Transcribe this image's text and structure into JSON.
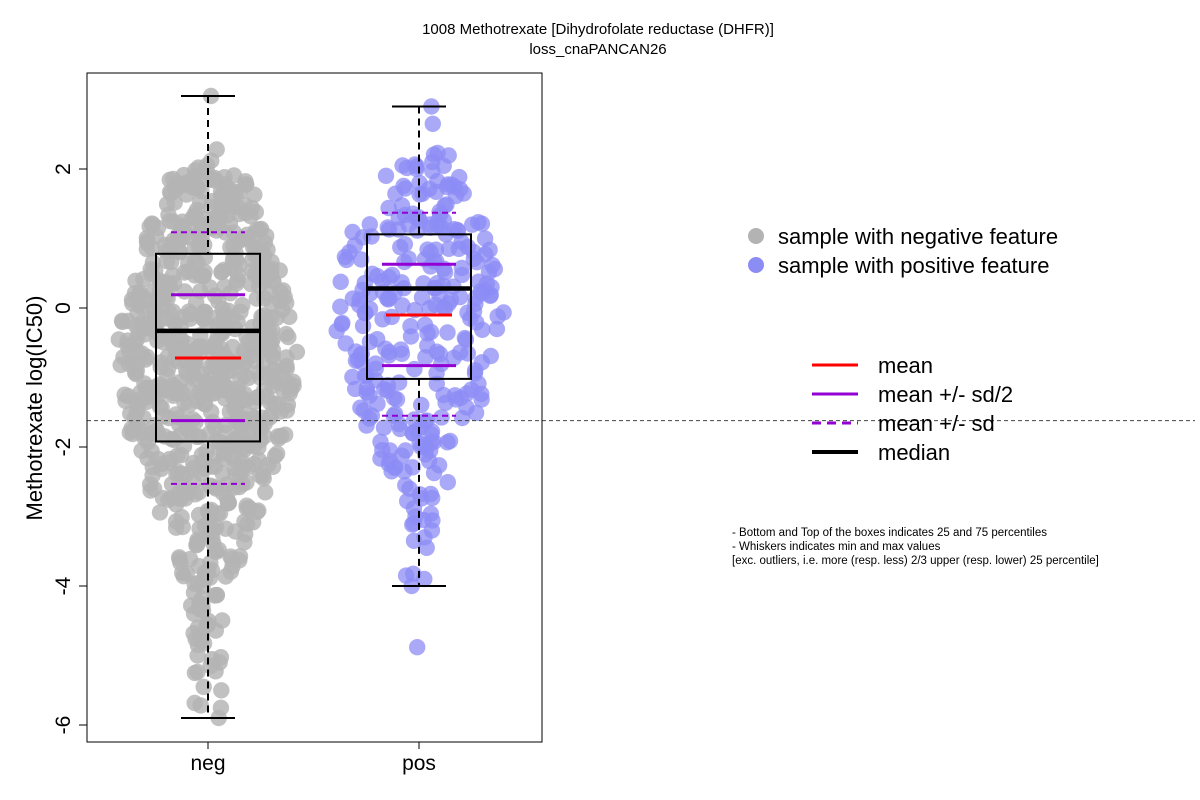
{
  "chart_data": {
    "type": "scatter",
    "title": "1008 Methotrexate [Dihydrofolate reductase (DHFR)]",
    "subtitle": "loss_cnaPANCAN26",
    "ylabel": "Methotrexate log(IC50)",
    "xlabel": "",
    "categories": [
      "neg",
      "pos"
    ],
    "yticks": [
      "2",
      "0",
      "-2",
      "-4",
      "-6"
    ],
    "ylim": [
      -6.25,
      3.4
    ],
    "grid": false,
    "reference_line": -1.62,
    "legend_position": "right",
    "legend_points": [
      {
        "label": "sample with negative feature",
        "color": "#b3b3b3"
      },
      {
        "label": "sample with positive feature",
        "color": "#8c8cf5"
      }
    ],
    "legend_lines": [
      {
        "label": "mean",
        "color": "#ff0000",
        "style": "solid"
      },
      {
        "label": "mean +/- sd/2",
        "color": "#9400d3",
        "style": "solid"
      },
      {
        "label": "mean +/- sd",
        "color": "#9400d3",
        "style": "dashed"
      },
      {
        "label": "median",
        "color": "#000000",
        "style": "solid"
      }
    ],
    "notes": [
      "- Bottom and Top of the boxes indicates 25 and 75 percentiles",
      "- Whiskers indicates min and max values",
      "[exc. outliers, i.e. more (resp. less) 2/3 upper (resp. lower) 25 percentile]"
    ],
    "series": [
      {
        "name": "neg",
        "color": "#b3b3b3",
        "n": 750,
        "min": -5.9,
        "q1": -1.92,
        "median": -0.33,
        "q3": 0.78,
        "max": 3.05,
        "mean": -0.72,
        "mean_minus_half_sd": -1.62,
        "mean_plus_half_sd": 0.19,
        "mean_minus_sd": -2.53,
        "mean_plus_sd": 1.09,
        "points": [
          3.05,
          2.28,
          2.12,
          2.05,
          2.02,
          -4.68,
          -4.72,
          -4.75,
          -4.85,
          -5.0,
          -5.1,
          -5.15,
          -5.25,
          -5.5,
          -5.9,
          -4.35,
          -4.4,
          -4.55,
          -4.6,
          -3.9,
          -4.0
        ]
      },
      {
        "name": "pos",
        "color": "#8c8cf5",
        "n": 300,
        "min": -4.0,
        "q1": -1.02,
        "median": 0.28,
        "q3": 1.06,
        "max": 2.9,
        "mean": -0.1,
        "mean_minus_half_sd": -0.83,
        "mean_plus_half_sd": 0.63,
        "mean_minus_sd": -1.55,
        "mean_plus_sd": 1.37,
        "points": [
          2.9,
          2.65,
          1.97,
          1.8,
          1.72,
          -4.88,
          -4.0,
          -3.85,
          -3.9,
          -3.45,
          -3.35,
          -3.3,
          -3.2,
          -3.1,
          -3.05,
          -3.0,
          -2.68,
          -2.55,
          -2.35,
          -2.2,
          -1.93,
          -1.95,
          -2.0,
          -2.05
        ]
      }
    ]
  }
}
